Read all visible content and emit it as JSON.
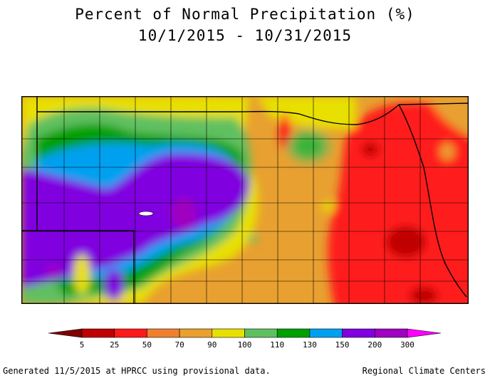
{
  "title": "Percent of Normal Precipitation (%)",
  "subtitle": "10/1/2015 - 10/31/2015",
  "legend": {
    "ticks": [
      "5",
      "25",
      "50",
      "70",
      "90",
      "100",
      "110",
      "130",
      "150",
      "200",
      "300"
    ],
    "colors": [
      "#7f0000",
      "#c00000",
      "#ff1a1a",
      "#f08030",
      "#e8a030",
      "#e8e000",
      "#60c060",
      "#00a000",
      "#00a0f0",
      "#8000e0",
      "#a000c0",
      "#ff00ff"
    ]
  },
  "footer": {
    "left": "Generated 11/5/2015 at HPRCC using provisional data.",
    "right": "Regional Climate Centers"
  }
}
